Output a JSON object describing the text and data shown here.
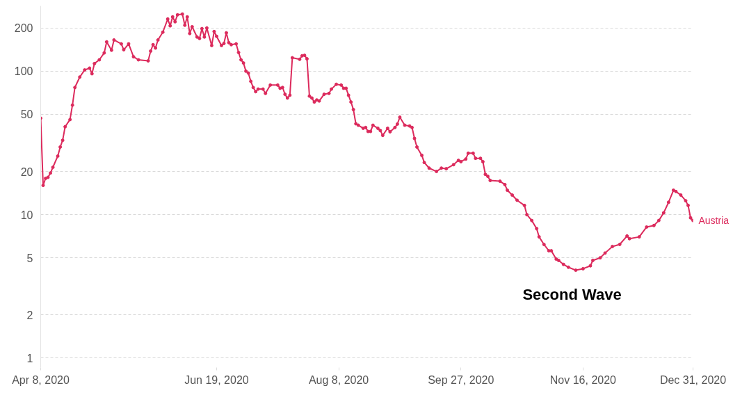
{
  "chart_data": {
    "type": "line",
    "log": "y",
    "grid": "y",
    "legend": false,
    "marker": "circle",
    "line_style": "solid",
    "xlim": [
      "2020-04-08",
      "2020-12-31"
    ],
    "ylim": [
      0.86,
      285
    ],
    "xticks": [
      {
        "value": "2020-04-08",
        "label": "Apr 8, 2020"
      },
      {
        "value": "2020-06-19",
        "label": "Jun 19, 2020"
      },
      {
        "value": "2020-08-08",
        "label": "Aug 8, 2020"
      },
      {
        "value": "2020-09-27",
        "label": "Sep 27, 2020"
      },
      {
        "value": "2020-11-16",
        "label": "Nov 16, 2020"
      },
      {
        "value": "2020-12-31",
        "label": "Dec 31, 2020"
      }
    ],
    "yticks": [
      1,
      2,
      5,
      10,
      20,
      50,
      100,
      200
    ],
    "annotations": [
      "Second Wave"
    ],
    "series": [
      {
        "name": "Austria",
        "color": "#dc2a5c",
        "x": [
          "2020-04-08",
          "2020-04-09",
          "2020-04-10",
          "2020-04-11",
          "2020-04-12",
          "2020-04-13",
          "2020-04-15",
          "2020-04-16",
          "2020-04-17",
          "2020-04-18",
          "2020-04-20",
          "2020-04-21",
          "2020-04-22",
          "2020-04-24",
          "2020-04-26",
          "2020-04-28",
          "2020-04-29",
          "2020-04-30",
          "2020-05-02",
          "2020-05-04",
          "2020-05-05",
          "2020-05-07",
          "2020-05-08",
          "2020-05-11",
          "2020-05-12",
          "2020-05-14",
          "2020-05-16",
          "2020-05-18",
          "2020-05-22",
          "2020-05-23",
          "2020-05-24",
          "2020-05-25",
          "2020-05-26",
          "2020-05-28",
          "2020-05-30",
          "2020-05-31",
          "2020-06-01",
          "2020-06-02",
          "2020-06-03",
          "2020-06-05",
          "2020-06-06",
          "2020-06-07",
          "2020-06-08",
          "2020-06-09",
          "2020-06-11",
          "2020-06-12",
          "2020-06-13",
          "2020-06-14",
          "2020-06-15",
          "2020-06-17",
          "2020-06-18",
          "2020-06-19",
          "2020-06-21",
          "2020-06-22",
          "2020-06-23",
          "2020-06-24",
          "2020-06-25",
          "2020-06-27",
          "2020-06-28",
          "2020-06-29",
          "2020-06-30",
          "2020-07-01",
          "2020-07-02",
          "2020-07-03",
          "2020-07-04",
          "2020-07-05",
          "2020-07-06",
          "2020-07-08",
          "2020-07-09",
          "2020-07-11",
          "2020-07-14",
          "2020-07-15",
          "2020-07-16",
          "2020-07-17",
          "2020-07-18",
          "2020-07-19",
          "2020-07-20",
          "2020-07-23",
          "2020-07-24",
          "2020-07-25",
          "2020-07-26",
          "2020-07-27",
          "2020-07-28",
          "2020-07-29",
          "2020-07-30",
          "2020-07-31",
          "2020-08-02",
          "2020-08-04",
          "2020-08-05",
          "2020-08-07",
          "2020-08-09",
          "2020-08-10",
          "2020-08-11",
          "2020-08-12",
          "2020-08-13",
          "2020-08-14",
          "2020-08-15",
          "2020-08-16",
          "2020-08-18",
          "2020-08-19",
          "2020-08-20",
          "2020-08-21",
          "2020-08-22",
          "2020-08-24",
          "2020-08-25",
          "2020-08-26",
          "2020-08-28",
          "2020-08-29",
          "2020-08-31",
          "2020-09-01",
          "2020-09-02",
          "2020-09-04",
          "2020-09-06",
          "2020-09-07",
          "2020-09-08",
          "2020-09-09",
          "2020-09-11",
          "2020-09-12",
          "2020-09-14",
          "2020-09-17",
          "2020-09-19",
          "2020-09-21",
          "2020-09-24",
          "2020-09-26",
          "2020-09-27",
          "2020-09-29",
          "2020-09-30",
          "2020-10-02",
          "2020-10-03",
          "2020-10-05",
          "2020-10-06",
          "2020-10-07",
          "2020-10-08",
          "2020-10-09",
          "2020-10-13",
          "2020-10-15",
          "2020-10-16",
          "2020-10-18",
          "2020-10-20",
          "2020-10-23",
          "2020-10-24",
          "2020-10-26",
          "2020-10-28",
          "2020-10-29",
          "2020-10-31",
          "2020-11-02",
          "2020-11-03",
          "2020-11-05",
          "2020-11-06",
          "2020-11-08",
          "2020-11-10",
          "2020-11-13",
          "2020-11-16",
          "2020-11-19",
          "2020-11-20",
          "2020-11-23",
          "2020-11-25",
          "2020-11-28",
          "2020-12-01",
          "2020-12-04",
          "2020-12-05",
          "2020-12-09",
          "2020-12-12",
          "2020-12-15",
          "2020-12-17",
          "2020-12-19",
          "2020-12-21",
          "2020-12-23",
          "2020-12-24",
          "2020-12-26",
          "2020-12-28",
          "2020-12-29",
          "2020-12-30",
          "2020-12-31"
        ],
        "values": [
          47,
          16,
          17.9,
          18.2,
          19.5,
          21.4,
          25.6,
          29.6,
          33,
          41,
          46,
          58,
          77,
          91,
          102,
          105,
          96,
          113,
          120,
          134,
          160,
          140,
          165,
          155,
          141,
          155,
          126,
          120,
          118,
          138,
          153,
          145,
          165,
          187,
          231,
          207,
          239,
          221,
          247,
          250,
          209,
          239,
          183,
          204,
          173,
          169,
          198,
          173,
          200,
          151,
          189,
          175,
          151,
          156,
          185,
          158,
          153,
          155,
          135,
          120,
          114,
          100,
          97,
          85,
          77,
          72,
          75,
          75,
          70,
          80,
          80,
          76,
          77,
          69,
          65,
          68,
          124,
          121,
          128,
          129,
          122,
          67,
          65,
          61,
          63,
          62,
          69,
          70,
          75,
          81,
          80,
          76,
          76,
          68,
          61,
          54,
          43,
          42,
          40,
          40.5,
          38,
          38,
          42,
          40,
          38.6,
          35.7,
          40,
          37.8,
          40.5,
          42.8,
          47.8,
          42,
          41.5,
          40.5,
          34,
          29.6,
          25.9,
          23.1,
          21.1,
          20,
          21.1,
          20.9,
          22.3,
          23.9,
          23.4,
          24.4,
          26.8,
          26.8,
          24.7,
          24.7,
          23.4,
          19.1,
          18.5,
          17.3,
          17.1,
          16.2,
          14.8,
          13.7,
          12.6,
          11.6,
          10,
          9.1,
          8,
          7,
          6.2,
          5.6,
          5.6,
          4.9,
          4.8,
          4.5,
          4.3,
          4.1,
          4.2,
          4.4,
          4.8,
          5,
          5.4,
          6,
          6.2,
          7.1,
          6.8,
          7,
          8.2,
          8.4,
          9.1,
          10.3,
          12.2,
          14.8,
          14.5,
          13.7,
          12.5,
          11.6,
          9.5,
          9.1
        ]
      }
    ]
  }
}
